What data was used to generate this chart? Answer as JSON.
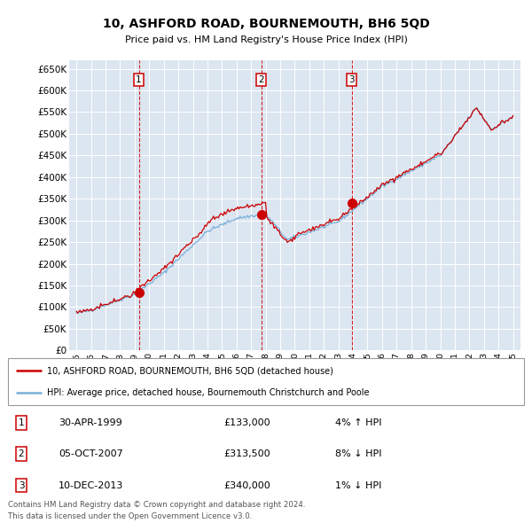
{
  "title": "10, ASHFORD ROAD, BOURNEMOUTH, BH6 5QD",
  "subtitle": "Price paid vs. HM Land Registry's House Price Index (HPI)",
  "bg_color": "#dce6f1",
  "sale_points": [
    {
      "date_num": 1999.33,
      "price": 133000,
      "label": "1",
      "date_str": "30-APR-1999",
      "hpi_pct": "4%",
      "hpi_dir": "↑"
    },
    {
      "date_num": 2007.75,
      "price": 313500,
      "label": "2",
      "date_str": "05-OCT-2007",
      "hpi_pct": "8%",
      "hpi_dir": "↓"
    },
    {
      "date_num": 2013.94,
      "price": 340000,
      "label": "3",
      "date_str": "10-DEC-2013",
      "hpi_pct": "1%",
      "hpi_dir": "↓"
    }
  ],
  "hpi_line_color": "#7ab0d8",
  "price_line_color": "#cc0000",
  "sale_marker_color": "#cc0000",
  "vline_color": "#cc0000",
  "legend_label_red": "10, ASHFORD ROAD, BOURNEMOUTH, BH6 5QD (detached house)",
  "legend_label_blue": "HPI: Average price, detached house, Bournemouth Christchurch and Poole",
  "footer": "Contains HM Land Registry data © Crown copyright and database right 2024.\nThis data is licensed under the Open Government Licence v3.0.",
  "ylim": [
    0,
    670000
  ],
  "xlim": [
    1994.5,
    2025.5
  ],
  "yticks": [
    0,
    50000,
    100000,
    150000,
    200000,
    250000,
    300000,
    350000,
    400000,
    450000,
    500000,
    550000,
    600000,
    650000
  ],
  "xticks": [
    1995,
    1996,
    1997,
    1998,
    1999,
    2000,
    2001,
    2002,
    2003,
    2004,
    2005,
    2006,
    2007,
    2008,
    2009,
    2010,
    2011,
    2012,
    2013,
    2014,
    2015,
    2016,
    2017,
    2018,
    2019,
    2020,
    2021,
    2022,
    2023,
    2024,
    2025
  ]
}
